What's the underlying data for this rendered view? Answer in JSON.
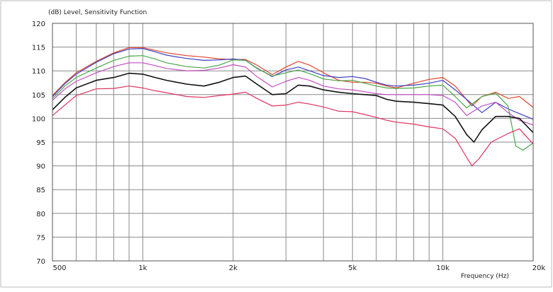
{
  "chart_data": {
    "type": "line",
    "title": "(dB)  Level, Sensitivity Function",
    "xlabel": "Frequency  (Hz)",
    "ylabel": "",
    "x_scale": "log",
    "xlim": [
      500,
      20000
    ],
    "ylim": [
      70,
      120
    ],
    "yticks": [
      70,
      75,
      80,
      85,
      90,
      95,
      100,
      105,
      110,
      115,
      120
    ],
    "xticks": [
      {
        "value": 500,
        "label": "500"
      },
      {
        "value": 1000,
        "label": "1k"
      },
      {
        "value": 2000,
        "label": "2k"
      },
      {
        "value": 5000,
        "label": "5k"
      },
      {
        "value": 10000,
        "label": "10k"
      },
      {
        "value": 20000,
        "label": "20k"
      }
    ],
    "x_gridlines": [
      500,
      600,
      700,
      800,
      900,
      1000,
      2000,
      3000,
      4000,
      5000,
      6000,
      7000,
      8000,
      9000,
      10000,
      20000
    ],
    "grid": true,
    "legend": "none",
    "series": [
      {
        "color": "#e0452a",
        "points": [
          [
            500,
            104.8
          ],
          [
            550,
            107.5
          ],
          [
            600,
            109.6
          ],
          [
            700,
            112.0
          ],
          [
            800,
            113.8
          ],
          [
            900,
            114.9
          ],
          [
            1000,
            114.9
          ],
          [
            1100,
            114.3
          ],
          [
            1200,
            113.8
          ],
          [
            1400,
            113.2
          ],
          [
            1600,
            112.9
          ],
          [
            1800,
            112.5
          ],
          [
            2000,
            112.4
          ],
          [
            2200,
            112.4
          ],
          [
            2400,
            111.2
          ],
          [
            2700,
            109.2
          ],
          [
            3000,
            110.8
          ],
          [
            3300,
            112.0
          ],
          [
            3600,
            111.2
          ],
          [
            4000,
            109.6
          ],
          [
            4500,
            108.0
          ],
          [
            5000,
            107.6
          ],
          [
            5500,
            107.6
          ],
          [
            6000,
            107.4
          ],
          [
            6500,
            106.8
          ],
          [
            7000,
            106.4
          ],
          [
            8000,
            107.4
          ],
          [
            9000,
            108.2
          ],
          [
            10000,
            108.6
          ],
          [
            11000,
            106.8
          ],
          [
            12500,
            102.6
          ],
          [
            13500,
            104.6
          ],
          [
            15000,
            105.5
          ],
          [
            16500,
            104.2
          ],
          [
            18000,
            104.6
          ],
          [
            20000,
            102.3
          ]
        ]
      },
      {
        "color": "#3b3fc4",
        "points": [
          [
            500,
            104.6
          ],
          [
            550,
            107.3
          ],
          [
            600,
            109.3
          ],
          [
            700,
            111.8
          ],
          [
            800,
            113.6
          ],
          [
            900,
            114.6
          ],
          [
            1000,
            114.7
          ],
          [
            1100,
            114.0
          ],
          [
            1200,
            113.3
          ],
          [
            1400,
            112.6
          ],
          [
            1600,
            112.2
          ],
          [
            1800,
            112.3
          ],
          [
            2000,
            112.5
          ],
          [
            2200,
            112.2
          ],
          [
            2400,
            110.6
          ],
          [
            2700,
            108.8
          ],
          [
            3000,
            110.2
          ],
          [
            3300,
            110.8
          ],
          [
            3600,
            110.0
          ],
          [
            4000,
            109.0
          ],
          [
            4500,
            108.6
          ],
          [
            5000,
            108.8
          ],
          [
            5500,
            108.4
          ],
          [
            6000,
            107.6
          ],
          [
            6500,
            107.0
          ],
          [
            7000,
            106.8
          ],
          [
            8000,
            107.0
          ],
          [
            9000,
            107.4
          ],
          [
            10000,
            108.0
          ],
          [
            11000,
            106.0
          ],
          [
            12000,
            104.0
          ],
          [
            13500,
            101.2
          ],
          [
            15000,
            103.4
          ],
          [
            16500,
            102.0
          ],
          [
            18000,
            101.0
          ],
          [
            20000,
            99.8
          ]
        ]
      },
      {
        "color": "#4aa64a",
        "points": [
          [
            500,
            104.2
          ],
          [
            550,
            106.8
          ],
          [
            600,
            108.6
          ],
          [
            700,
            110.6
          ],
          [
            800,
            112.2
          ],
          [
            900,
            113.1
          ],
          [
            1000,
            113.2
          ],
          [
            1100,
            112.5
          ],
          [
            1200,
            111.7
          ],
          [
            1400,
            110.9
          ],
          [
            1600,
            110.6
          ],
          [
            1800,
            111.2
          ],
          [
            2000,
            112.3
          ],
          [
            2200,
            112.2
          ],
          [
            2400,
            110.5
          ],
          [
            2700,
            108.9
          ],
          [
            3000,
            109.6
          ],
          [
            3300,
            110.2
          ],
          [
            3600,
            109.4
          ],
          [
            4000,
            108.3
          ],
          [
            4500,
            107.9
          ],
          [
            5000,
            108.0
          ],
          [
            5500,
            107.4
          ],
          [
            6000,
            106.8
          ],
          [
            6500,
            106.4
          ],
          [
            7000,
            106.3
          ],
          [
            8000,
            106.4
          ],
          [
            9000,
            106.8
          ],
          [
            10000,
            107.0
          ],
          [
            11000,
            104.6
          ],
          [
            12000,
            102.2
          ],
          [
            13500,
            104.6
          ],
          [
            15000,
            105.3
          ],
          [
            16500,
            102.6
          ],
          [
            17500,
            94.2
          ],
          [
            18500,
            93.3
          ],
          [
            20000,
            94.8
          ]
        ]
      },
      {
        "color": "#c24cc2",
        "points": [
          [
            500,
            103.8
          ],
          [
            550,
            106.2
          ],
          [
            600,
            107.8
          ],
          [
            700,
            109.6
          ],
          [
            800,
            110.9
          ],
          [
            900,
            111.7
          ],
          [
            1000,
            111.7
          ],
          [
            1100,
            111.1
          ],
          [
            1200,
            110.5
          ],
          [
            1400,
            110.0
          ],
          [
            1600,
            110.1
          ],
          [
            1800,
            110.6
          ],
          [
            2000,
            111.3
          ],
          [
            2200,
            110.8
          ],
          [
            2400,
            108.8
          ],
          [
            2700,
            106.6
          ],
          [
            3000,
            107.8
          ],
          [
            3300,
            108.6
          ],
          [
            3600,
            108.0
          ],
          [
            4000,
            106.8
          ],
          [
            4500,
            106.2
          ],
          [
            5000,
            106.0
          ],
          [
            5500,
            105.6
          ],
          [
            6000,
            105.2
          ],
          [
            6500,
            105.0
          ],
          [
            7000,
            105.0
          ],
          [
            8000,
            105.0
          ],
          [
            9000,
            105.0
          ],
          [
            10000,
            104.8
          ],
          [
            11000,
            103.4
          ],
          [
            12000,
            100.6
          ],
          [
            13500,
            102.6
          ],
          [
            15000,
            103.4
          ],
          [
            16500,
            101.2
          ],
          [
            18000,
            99.6
          ],
          [
            20000,
            98.6
          ]
        ]
      },
      {
        "color": "#111111",
        "points": [
          [
            500,
            101.8
          ],
          [
            550,
            104.4
          ],
          [
            600,
            106.4
          ],
          [
            700,
            108.0
          ],
          [
            800,
            108.6
          ],
          [
            900,
            109.5
          ],
          [
            1000,
            109.3
          ],
          [
            1100,
            108.6
          ],
          [
            1200,
            108.0
          ],
          [
            1400,
            107.2
          ],
          [
            1600,
            106.8
          ],
          [
            1800,
            107.6
          ],
          [
            2000,
            108.6
          ],
          [
            2200,
            108.9
          ],
          [
            2400,
            107.2
          ],
          [
            2700,
            105.0
          ],
          [
            3000,
            105.2
          ],
          [
            3300,
            107.0
          ],
          [
            3600,
            106.8
          ],
          [
            4000,
            106.0
          ],
          [
            4500,
            105.5
          ],
          [
            5000,
            105.2
          ],
          [
            5500,
            105.0
          ],
          [
            6000,
            104.8
          ],
          [
            6500,
            104.0
          ],
          [
            7000,
            103.6
          ],
          [
            8000,
            103.4
          ],
          [
            9000,
            103.1
          ],
          [
            10000,
            102.8
          ],
          [
            11000,
            100.4
          ],
          [
            12000,
            96.6
          ],
          [
            12700,
            95.0
          ],
          [
            13500,
            97.6
          ],
          [
            15000,
            100.4
          ],
          [
            16500,
            100.4
          ],
          [
            18000,
            100.0
          ],
          [
            20000,
            97.0
          ]
        ]
      },
      {
        "color": "#e0335e",
        "points": [
          [
            500,
            100.6
          ],
          [
            550,
            102.8
          ],
          [
            600,
            104.8
          ],
          [
            700,
            106.2
          ],
          [
            800,
            106.3
          ],
          [
            900,
            106.8
          ],
          [
            1000,
            106.4
          ],
          [
            1100,
            105.8
          ],
          [
            1200,
            105.4
          ],
          [
            1400,
            104.6
          ],
          [
            1600,
            104.4
          ],
          [
            1800,
            104.8
          ],
          [
            2000,
            105.1
          ],
          [
            2200,
            105.5
          ],
          [
            2400,
            104.2
          ],
          [
            2700,
            102.6
          ],
          [
            3000,
            102.8
          ],
          [
            3300,
            103.4
          ],
          [
            3600,
            103.0
          ],
          [
            4000,
            102.4
          ],
          [
            4500,
            101.5
          ],
          [
            5000,
            101.4
          ],
          [
            5500,
            100.8
          ],
          [
            6000,
            100.2
          ],
          [
            6500,
            99.6
          ],
          [
            7000,
            99.2
          ],
          [
            8000,
            98.8
          ],
          [
            9000,
            98.2
          ],
          [
            10000,
            97.8
          ],
          [
            11000,
            95.8
          ],
          [
            12000,
            91.8
          ],
          [
            12500,
            90.0
          ],
          [
            13200,
            91.5
          ],
          [
            14500,
            95.0
          ],
          [
            16500,
            96.8
          ],
          [
            18000,
            97.8
          ],
          [
            20000,
            94.6
          ]
        ]
      }
    ]
  }
}
